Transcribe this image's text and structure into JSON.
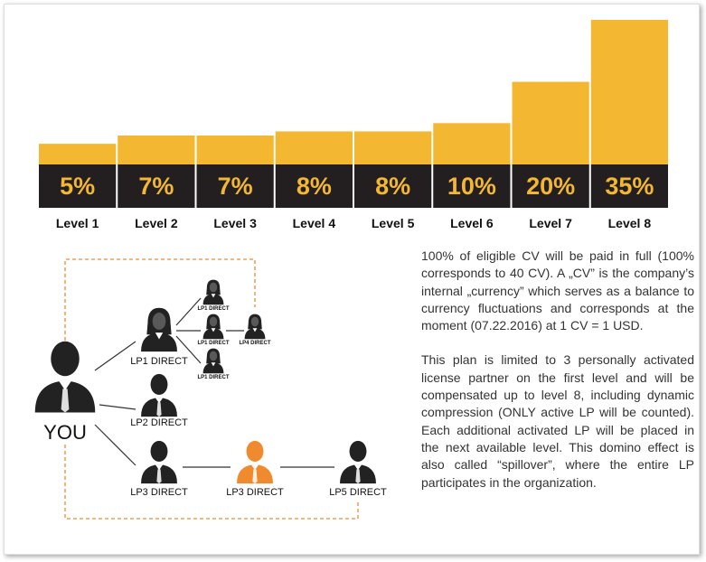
{
  "chart_data": {
    "type": "bar",
    "categories": [
      "Level 1",
      "Level 2",
      "Level 3",
      "Level 4",
      "Level 5",
      "Level 6",
      "Level 7",
      "Level 8"
    ],
    "values": [
      5,
      7,
      7,
      8,
      8,
      10,
      20,
      35
    ],
    "value_labels": [
      "5%",
      "7%",
      "7%",
      "8%",
      "8%",
      "10%",
      "20%",
      "35%"
    ],
    "color": "#f4b731"
  },
  "diagram": {
    "nodes": [
      {
        "label": "YOU"
      },
      {
        "label": "LP1 DIRECT"
      },
      {
        "label": "LP2 DIRECT"
      },
      {
        "label": "LP3 DIRECT"
      },
      {
        "label": "LP3 DIRECT"
      },
      {
        "label": "LP5 DIRECT"
      },
      {
        "label": "LP1 DIRECT"
      },
      {
        "label": "LP1 DIRECT"
      },
      {
        "label": "LP1 DIRECT"
      },
      {
        "label": "LP4 DIRECT"
      }
    ]
  },
  "text": {
    "paragraphs": [
      "100% of eligible CV will be paid in full (100% corresponds to 40 CV). A „CV” is the company’s internal „currency” which serves as a balance to currency fluctuations and corresponds at the moment (07.22.2016) at 1 CV = 1 USD.",
      "This plan is limited to 3 personally activated license partner on the first level and will be compensated up to level 8, including dynamic compression (ONLY active LP will be counted). Each additional activated LP will be placed in the next available level. This domino effect is also called “spillover”, where the entire LP participates in the organization."
    ]
  }
}
